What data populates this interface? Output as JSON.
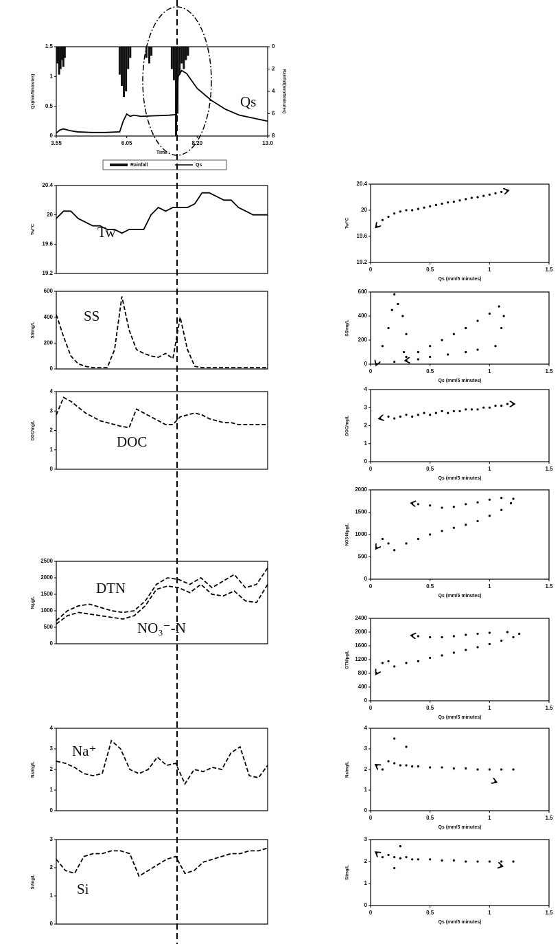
{
  "chart_data": [
    {
      "type": "bar-line",
      "xlabel": "Time",
      "ylabel": "Qs(mm/5minutes)",
      "y2label": "Rainfall(mm/5minutes)",
      "annotation": "Qs",
      "xlim": [
        0,
        3
      ],
      "xticks": [
        {
          "value": 0,
          "label": "3.55"
        },
        {
          "value": 1,
          "label": "6.05"
        },
        {
          "value": 2,
          "label": "8.20"
        },
        {
          "value": 3,
          "label": "13.0"
        }
      ],
      "ylim": [
        0,
        1.5
      ],
      "yticks": [
        0,
        0.5,
        1,
        1.5
      ],
      "y2lim": [
        0,
        8
      ],
      "y2ticks": [
        0,
        2,
        4,
        6,
        8
      ],
      "y2_inverted": true,
      "series": [
        {
          "name": "Rainfall",
          "type": "bar",
          "axis": "y2",
          "color": "#111",
          "x": [
            0.02,
            0.04,
            0.06,
            0.08,
            0.1,
            0.12,
            0.9,
            0.93,
            0.96,
            0.99,
            1.02,
            1.05,
            1.28,
            1.32,
            1.35,
            1.64,
            1.67,
            1.7,
            1.72,
            1.75,
            1.78,
            1.81,
            1.84,
            1.87
          ],
          "values": [
            1.5,
            2.5,
            2,
            1.2,
            1.8,
            1,
            2.5,
            3.5,
            4.5,
            4,
            2,
            1,
            1,
            1.5,
            0.8,
            2,
            3,
            8,
            6,
            2.5,
            1.5,
            2,
            1.2,
            0.8
          ]
        },
        {
          "name": "Qs",
          "type": "line",
          "color": "#000",
          "x": [
            0,
            0.05,
            0.1,
            0.2,
            0.3,
            0.5,
            0.7,
            0.9,
            0.95,
            1.0,
            1.05,
            1.1,
            1.2,
            1.4,
            1.6,
            1.7,
            1.73,
            1.78,
            1.85,
            2.0,
            2.2,
            2.4,
            2.6,
            2.8,
            3.0
          ],
          "values": [
            0.05,
            0.1,
            0.12,
            0.09,
            0.07,
            0.06,
            0.06,
            0.07,
            0.25,
            0.37,
            0.33,
            0.35,
            0.33,
            0.34,
            0.35,
            0.36,
            1.0,
            1.1,
            1.05,
            0.8,
            0.6,
            0.45,
            0.35,
            0.3,
            0.25
          ]
        }
      ]
    },
    {
      "type": "line",
      "ylabel": "Tw/°C",
      "ylim": [
        19.2,
        20.4
      ],
      "yticks": [
        19.2,
        19.6,
        20,
        20.4
      ],
      "series": [
        {
          "name": "Tw",
          "color": "#000",
          "line_style": "solid",
          "values": [
            19.95,
            20.05,
            20.05,
            19.95,
            19.9,
            19.85,
            19.85,
            19.8,
            19.8,
            19.75,
            19.8,
            19.8,
            19.8,
            20.0,
            20.1,
            20.05,
            20.1,
            20.1,
            20.1,
            20.15,
            20.3,
            20.3,
            20.25,
            20.2,
            20.2,
            20.1,
            20.05,
            20.0,
            20.0,
            20.0
          ]
        }
      ]
    },
    {
      "type": "line",
      "ylabel": "SS/mg/L",
      "ylim": [
        0,
        600
      ],
      "yticks": [
        0,
        200,
        400,
        600
      ],
      "series": [
        {
          "name": "SS",
          "color": "#000",
          "line_style": "dashed",
          "values": [
            420,
            250,
            100,
            40,
            20,
            10,
            10,
            10,
            150,
            560,
            300,
            150,
            120,
            100,
            90,
            120,
            80,
            400,
            150,
            20,
            10,
            10,
            10,
            10,
            10,
            10,
            10,
            10,
            10,
            10
          ]
        }
      ]
    },
    {
      "type": "line",
      "ylabel": "DOC/mg/L",
      "ylim": [
        0,
        4
      ],
      "yticks": [
        0,
        1,
        2,
        3,
        4
      ],
      "series": [
        {
          "name": "DOC",
          "color": "#000",
          "line_style": "dashed",
          "values": [
            2.8,
            3.7,
            3.5,
            3.2,
            2.9,
            2.7,
            2.5,
            2.4,
            2.3,
            2.2,
            2.15,
            3.1,
            2.9,
            2.7,
            2.5,
            2.3,
            2.3,
            2.7,
            2.8,
            2.9,
            2.8,
            2.6,
            2.5,
            2.4,
            2.4,
            2.3,
            2.3,
            2.3,
            2.3,
            2.3
          ]
        }
      ]
    },
    {
      "type": "line",
      "ylabel": "N/µg/L",
      "ylim": [
        0,
        2500
      ],
      "yticks": [
        0,
        500,
        1000,
        1500,
        2000,
        2500
      ],
      "series": [
        {
          "name": "DTN",
          "color": "#000",
          "line_style": "dashed",
          "values": [
            700,
            1000,
            1150,
            1200,
            1100,
            1000,
            950,
            1000,
            1300,
            1800,
            2000,
            1950,
            1800,
            2000,
            1700,
            1900,
            2100,
            1700,
            1800,
            2300
          ]
        },
        {
          "name": "NO₃⁻-N",
          "color": "#000",
          "line_style": "dashed",
          "values": [
            600,
            850,
            950,
            900,
            850,
            800,
            750,
            850,
            1150,
            1650,
            1750,
            1700,
            1550,
            1800,
            1500,
            1450,
            1600,
            1300,
            1250,
            1800
          ]
        }
      ]
    },
    {
      "type": "line",
      "ylabel": "Na/mg/L",
      "ylim": [
        0,
        4
      ],
      "yticks": [
        0,
        1,
        2,
        3,
        4
      ],
      "series": [
        {
          "name": "Na⁺",
          "color": "#000",
          "line_style": "dashed",
          "values": [
            2.4,
            2.3,
            2.1,
            1.8,
            1.7,
            1.8,
            3.4,
            3.0,
            2.0,
            1.8,
            2.0,
            2.6,
            2.2,
            2.3,
            1.3,
            2.0,
            1.9,
            2.1,
            2.0,
            2.8,
            3.1,
            1.7,
            1.6,
            2.2
          ]
        }
      ]
    },
    {
      "type": "line",
      "ylabel": "Si/mg/L",
      "ylim": [
        0,
        3
      ],
      "yticks": [
        0,
        1,
        2,
        3
      ],
      "series": [
        {
          "name": "Si",
          "color": "#000",
          "line_style": "dashed",
          "values": [
            2.3,
            1.9,
            1.8,
            2.4,
            2.5,
            2.5,
            2.6,
            2.6,
            2.5,
            1.7,
            1.9,
            2.1,
            2.3,
            2.4,
            1.8,
            1.9,
            2.2,
            2.3,
            2.4,
            2.5,
            2.5,
            2.6,
            2.6,
            2.7
          ]
        }
      ]
    },
    {
      "type": "scatter",
      "xlabel": "Qs (mm/5 minutes)",
      "ylabel": "Tw/°C",
      "xlim": [
        0,
        1.5
      ],
      "xticks": [
        0,
        0.5,
        1,
        1.5
      ],
      "ylim": [
        19.2,
        20.4
      ],
      "yticks": [
        19.2,
        19.6,
        20,
        20.4
      ],
      "series": [
        {
          "color": "#000",
          "x": [
            0.05,
            0.1,
            0.15,
            0.2,
            0.25,
            0.3,
            0.35,
            0.4,
            0.45,
            0.5,
            0.55,
            0.6,
            0.65,
            0.7,
            0.75,
            0.8,
            0.85,
            0.9,
            0.95,
            1.0,
            1.05,
            1.1,
            1.15
          ],
          "values": [
            19.75,
            19.85,
            19.9,
            19.95,
            19.98,
            20.0,
            20.0,
            20.02,
            20.04,
            20.06,
            20.08,
            20.1,
            20.12,
            20.13,
            20.15,
            20.17,
            20.19,
            20.2,
            20.22,
            20.24,
            20.26,
            20.28,
            20.3
          ]
        }
      ]
    },
    {
      "type": "scatter",
      "xlabel": "Qs (mm/5 minutes)",
      "ylabel": "SS/mg/L",
      "xlim": [
        0,
        1.5
      ],
      "xticks": [
        0,
        0.5,
        1,
        1.5
      ],
      "ylim": [
        0,
        600
      ],
      "yticks": [
        0,
        200,
        400,
        600
      ],
      "series": [
        {
          "color": "#000",
          "x": [
            0.05,
            0.1,
            0.15,
            0.18,
            0.2,
            0.23,
            0.27,
            0.3,
            0.28,
            0.2,
            0.3,
            0.4,
            0.5,
            0.6,
            0.7,
            0.8,
            0.9,
            1.0,
            1.08,
            1.12,
            1.1,
            1.05,
            0.9,
            0.8,
            0.65,
            0.5,
            0.4,
            0.3
          ],
          "values": [
            0,
            150,
            300,
            450,
            580,
            500,
            400,
            250,
            100,
            20,
            60,
            100,
            150,
            200,
            250,
            300,
            360,
            420,
            480,
            400,
            300,
            150,
            120,
            100,
            80,
            60,
            40,
            30
          ]
        }
      ]
    },
    {
      "type": "scatter",
      "xlabel": "Qs (mm/5 minutes)",
      "ylabel": "DOC/mg/L",
      "xlim": [
        0,
        1.5
      ],
      "xticks": [
        0,
        0.5,
        1,
        1.5
      ],
      "ylim": [
        0,
        4
      ],
      "yticks": [
        0,
        1,
        2,
        3,
        4
      ],
      "series": [
        {
          "color": "#000",
          "x": [
            0.08,
            0.15,
            0.2,
            0.25,
            0.3,
            0.35,
            0.4,
            0.45,
            0.5,
            0.55,
            0.6,
            0.65,
            0.7,
            0.75,
            0.8,
            0.85,
            0.9,
            0.95,
            1.0,
            1.05,
            1.1,
            1.15,
            1.2
          ],
          "values": [
            2.4,
            2.5,
            2.4,
            2.5,
            2.6,
            2.5,
            2.6,
            2.7,
            2.6,
            2.7,
            2.8,
            2.7,
            2.8,
            2.8,
            2.9,
            2.9,
            2.9,
            3.0,
            3.0,
            3.1,
            3.1,
            3.2,
            3.2
          ]
        }
      ]
    },
    {
      "type": "scatter",
      "xlabel": "Qs (mm/5 minutes)",
      "ylabel": "NO3-N/µg/L",
      "xlim": [
        0,
        1.5
      ],
      "xticks": [
        0,
        0.5,
        1,
        1.5
      ],
      "ylim": [
        0,
        2000
      ],
      "yticks": [
        0,
        500,
        1000,
        1500,
        2000
      ],
      "series": [
        {
          "color": "#000",
          "x": [
            0.05,
            0.1,
            0.15,
            0.2,
            0.3,
            0.4,
            0.5,
            0.6,
            0.7,
            0.8,
            0.9,
            1.0,
            1.1,
            1.18,
            1.2,
            1.1,
            1.0,
            0.9,
            0.8,
            0.7,
            0.6,
            0.5,
            0.4,
            0.35
          ],
          "values": [
            700,
            900,
            800,
            650,
            800,
            900,
            1000,
            1080,
            1150,
            1220,
            1300,
            1420,
            1550,
            1700,
            1800,
            1820,
            1780,
            1720,
            1680,
            1620,
            1600,
            1650,
            1680,
            1700
          ]
        }
      ]
    },
    {
      "type": "scatter",
      "xlabel": "Qs (mm/5 minutes)",
      "ylabel": "DTN/µg/L",
      "xlim": [
        0,
        1.5
      ],
      "xticks": [
        0,
        0.5,
        1,
        1.5
      ],
      "ylim": [
        0,
        2400
      ],
      "yticks": [
        0,
        400,
        800,
        1200,
        1600,
        2000,
        2400
      ],
      "series": [
        {
          "color": "#000",
          "x": [
            0.05,
            0.1,
            0.15,
            0.2,
            0.3,
            0.4,
            0.5,
            0.6,
            0.7,
            0.8,
            0.9,
            1.0,
            1.1,
            1.2,
            1.25,
            1.15,
            1.0,
            0.9,
            0.8,
            0.7,
            0.6,
            0.5,
            0.4,
            0.35
          ],
          "values": [
            800,
            1100,
            1150,
            1000,
            1100,
            1150,
            1250,
            1320,
            1400,
            1480,
            1560,
            1650,
            1750,
            1850,
            1950,
            2000,
            1980,
            1950,
            1920,
            1880,
            1850,
            1850,
            1880,
            1900
          ]
        }
      ]
    },
    {
      "type": "scatter",
      "xlabel": "Qs (mm/5 minutes)",
      "ylabel": "Na/mg/L",
      "xlim": [
        0,
        1.5
      ],
      "xticks": [
        0,
        0.5,
        1,
        1.5
      ],
      "ylim": [
        0,
        4
      ],
      "yticks": [
        0,
        1,
        2,
        3,
        4
      ],
      "series": [
        {
          "color": "#000",
          "x": [
            0.05,
            0.1,
            0.15,
            0.2,
            0.25,
            0.3,
            0.35,
            0.4,
            0.5,
            0.6,
            0.7,
            0.8,
            0.9,
            1.0,
            1.1,
            1.2,
            0.2,
            0.3,
            1.05
          ],
          "values": [
            2.2,
            2.0,
            2.4,
            2.3,
            2.2,
            2.2,
            2.15,
            2.15,
            2.1,
            2.1,
            2.05,
            2.05,
            2.0,
            2.0,
            2.0,
            2.0,
            3.5,
            3.1,
            1.4
          ]
        }
      ]
    },
    {
      "type": "scatter",
      "xlabel": "Qs (mm/5 minutes)",
      "ylabel": "Si/mg/L",
      "xlim": [
        0,
        1.5
      ],
      "xticks": [
        0,
        0.5,
        1,
        1.5
      ],
      "ylim": [
        0,
        3
      ],
      "yticks": [
        0,
        1,
        2,
        3
      ],
      "series": [
        {
          "color": "#000",
          "x": [
            0.05,
            0.1,
            0.15,
            0.2,
            0.25,
            0.3,
            0.35,
            0.4,
            0.5,
            0.6,
            0.7,
            0.8,
            0.9,
            1.0,
            1.1,
            1.2,
            0.2,
            0.25,
            1.1
          ],
          "values": [
            2.4,
            2.2,
            2.3,
            2.2,
            2.15,
            2.2,
            2.1,
            2.1,
            2.1,
            2.05,
            2.05,
            2.0,
            2.0,
            2.0,
            2.0,
            2.0,
            1.7,
            2.7,
            1.8
          ]
        }
      ]
    }
  ]
}
